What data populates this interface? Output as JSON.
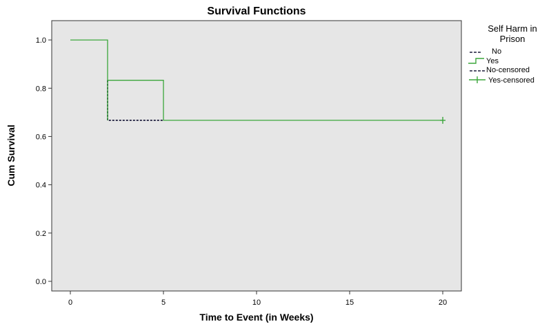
{
  "chart_data": {
    "type": "line",
    "step": true,
    "title": "Survival Functions",
    "xlabel": "Time to Event (in Weeks)",
    "ylabel": "Cum Survival",
    "xlim": [
      -1,
      21
    ],
    "ylim": [
      -0.04,
      1.08
    ],
    "x_ticks": [
      0,
      5,
      10,
      15,
      20
    ],
    "y_ticks": [
      0.0,
      0.2,
      0.4,
      0.6,
      0.8,
      1.0
    ],
    "x_tick_labels": [
      "0",
      "5",
      "10",
      "15",
      "20"
    ],
    "y_tick_labels": [
      "0.0",
      "0.2",
      "0.4",
      "0.6",
      "0.8",
      "1.0"
    ],
    "grid": false,
    "plot_background": "#e6e6e6",
    "legend": {
      "title_line1": "Self Harm in",
      "title_line2": "Prison",
      "placement": "right",
      "entries": [
        {
          "label": "No",
          "style": "dashed",
          "color": "#1a1a3a"
        },
        {
          "label": "Yes",
          "style": "solid",
          "color": "#3aa53a"
        },
        {
          "label": "No-censored",
          "style": "dashed-marker",
          "color": "#1a1a3a"
        },
        {
          "label": "Yes-censored",
          "style": "marker",
          "color": "#3aa53a"
        }
      ]
    },
    "series": [
      {
        "name": "No",
        "color": "#1a1a3a",
        "dash": true,
        "points": [
          [
            2,
            0.833
          ],
          [
            2,
            0.667
          ],
          [
            5,
            0.667
          ]
        ]
      },
      {
        "name": "Yes",
        "color": "#3aa53a",
        "dash": false,
        "points": [
          [
            0,
            1.0
          ],
          [
            2,
            1.0
          ],
          [
            2,
            0.667
          ],
          [
            2,
            0.833
          ],
          [
            5,
            0.833
          ],
          [
            5,
            0.667
          ],
          [
            20,
            0.667
          ]
        ]
      }
    ],
    "censored": [
      {
        "series": "Yes",
        "x": 20,
        "y": 0.667
      }
    ]
  }
}
